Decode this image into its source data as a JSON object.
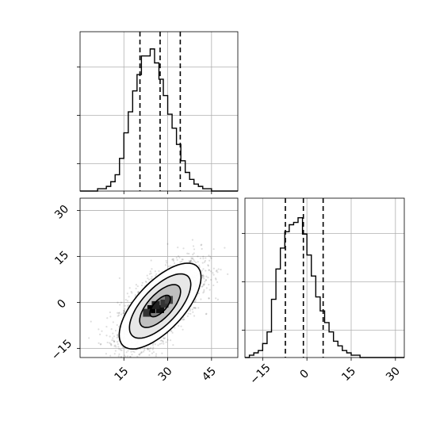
{
  "chart_data": {
    "type": "corner",
    "panels": [
      {
        "id": "marginal-x",
        "type": "histogram",
        "bins_x": [
          3,
          6,
          9,
          12,
          15,
          18,
          21,
          24,
          27,
          30,
          33,
          36,
          39,
          42,
          45,
          48,
          51
        ],
        "bin_edges": [
          0,
          1.5,
          3,
          4.5,
          6,
          7.5,
          9,
          10.5,
          12,
          13.5,
          15,
          16.5,
          18,
          19.5,
          21,
          22.5,
          24,
          25.5,
          27,
          28.5,
          30,
          31.5,
          33,
          34.5,
          36,
          37.5,
          39,
          40.5,
          42,
          43.5,
          45,
          46.5,
          48,
          49.5,
          51,
          52.5,
          54
        ],
        "counts": [
          0,
          0,
          0,
          0,
          1,
          1,
          2,
          4,
          7,
          14,
          25,
          34,
          43,
          50,
          58,
          58,
          61,
          55,
          48,
          41,
          33,
          27,
          20,
          13,
          8,
          5,
          3,
          2,
          1,
          1,
          0,
          0,
          0,
          0,
          0,
          0
        ],
        "quantiles": [
          20.5,
          27.4,
          34.3
        ],
        "xlim": [
          0,
          54
        ],
        "ylim": [
          0,
          65
        ],
        "xticks": [
          15,
          30,
          45
        ]
      },
      {
        "id": "joint",
        "type": "scatter-density",
        "xlim": [
          0,
          54
        ],
        "ylim": [
          -18,
          34
        ],
        "xticks": [
          15,
          30,
          45
        ],
        "yticks": [
          -15,
          0,
          15,
          30
        ],
        "xtick_labels": [
          "15",
          "30",
          "45"
        ],
        "ytick_labels": [
          "−15",
          "0",
          "15",
          "30"
        ],
        "mean": [
          27.4,
          -1.2
        ],
        "cov": [
          [
            49,
            33
          ],
          [
            33,
            49
          ]
        ],
        "contour_levels": [
          0.5,
          1.0,
          1.5,
          2.0
        ]
      },
      {
        "id": "marginal-y",
        "type": "histogram",
        "bin_edges": [
          -21,
          -19.5,
          -18,
          -16.5,
          -15,
          -13.5,
          -12,
          -10.5,
          -9,
          -7.5,
          -6,
          -4.5,
          -3,
          -1.5,
          0,
          1.5,
          3,
          4.5,
          6,
          7.5,
          9,
          10.5,
          12,
          13.5,
          15,
          16.5,
          18,
          19.5,
          21,
          22.5,
          24,
          25.5,
          27,
          28.5,
          30,
          31.5,
          33
        ],
        "counts": [
          0,
          1,
          2,
          3,
          6,
          11,
          25,
          38,
          47,
          54,
          57,
          58,
          60,
          53,
          44,
          35,
          26,
          20,
          15,
          11,
          7,
          5,
          3,
          2,
          1,
          1,
          0,
          0,
          0,
          0,
          0,
          0,
          0,
          0,
          0,
          0
        ],
        "quantiles": [
          -7.3,
          -1.2,
          5.5
        ],
        "xlim": [
          -21,
          33
        ],
        "ylim": [
          0,
          65
        ],
        "xticks": [
          -15,
          0,
          15,
          30
        ],
        "xtick_labels": [
          "−15",
          "0",
          "15",
          "30"
        ]
      }
    ]
  }
}
